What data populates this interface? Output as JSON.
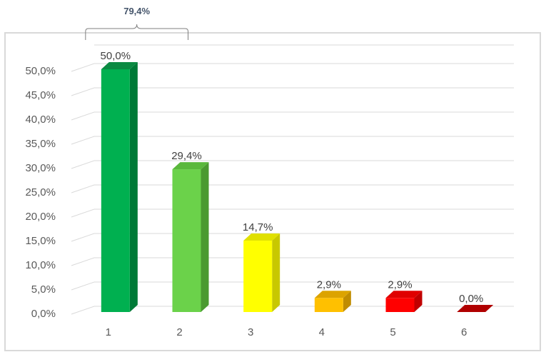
{
  "chart_data": {
    "type": "bar",
    "categories": [
      "1",
      "2",
      "3",
      "4",
      "5",
      "6"
    ],
    "values": [
      50.0,
      29.4,
      14.7,
      2.9,
      2.9,
      0.0
    ],
    "value_labels": [
      "50,0%",
      "29,4%",
      "14,7%",
      "2,9%",
      "2,9%",
      "0,0%"
    ],
    "ylim": [
      0,
      50
    ],
    "ytick_labels": [
      "0,0%",
      "5,0%",
      "10,0%",
      "15,0%",
      "20,0%",
      "25,0%",
      "30,0%",
      "35,0%",
      "40,0%",
      "45,0%",
      "50,0%"
    ],
    "grid": true,
    "legend": "none",
    "bar_colors": [
      {
        "front": "#00b050",
        "side": "#007a37",
        "top": "#0b8a42"
      },
      {
        "front": "#6bd24a",
        "side": "#4a9a30",
        "top": "#5ab83c"
      },
      {
        "front": "#ffff00",
        "side": "#c8c800",
        "top": "#e0e000"
      },
      {
        "front": "#ffc000",
        "side": "#c08c00",
        "top": "#dca300"
      },
      {
        "front": "#ff0000",
        "side": "#c00000",
        "top": "#e00000"
      },
      {
        "front": "#c00000",
        "side": "#900000",
        "top": "#b00000"
      }
    ],
    "annotation": {
      "label": "79,4%",
      "spans_categories": [
        "1",
        "2"
      ]
    }
  }
}
